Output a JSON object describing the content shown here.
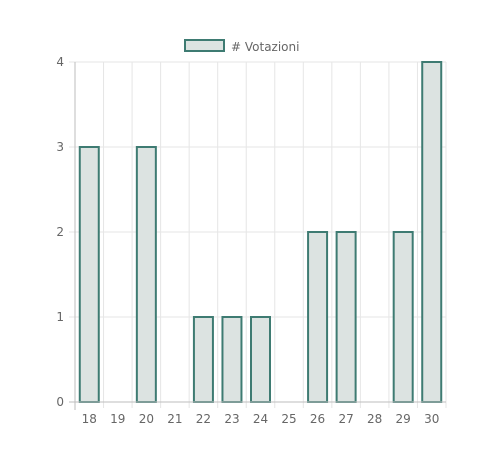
{
  "chart_data": {
    "type": "bar",
    "categories": [
      "18",
      "19",
      "20",
      "21",
      "22",
      "23",
      "24",
      "25",
      "26",
      "27",
      "28",
      "29",
      "30"
    ],
    "series": [
      {
        "name": "# Votazioni",
        "values": [
          3,
          0,
          3,
          0,
          1,
          1,
          1,
          0,
          2,
          2,
          0,
          2,
          4
        ]
      }
    ],
    "ylim": [
      0,
      4
    ],
    "yticks": [
      "0",
      "1",
      "2",
      "3",
      "4"
    ],
    "grid": true,
    "legend": "top-center",
    "colors": {
      "bar_fill": "#dce3e1",
      "bar_stroke": "#3e7b72",
      "grid": "#e6e6e6",
      "axis": "#bdbdbd",
      "text": "#666666"
    }
  }
}
